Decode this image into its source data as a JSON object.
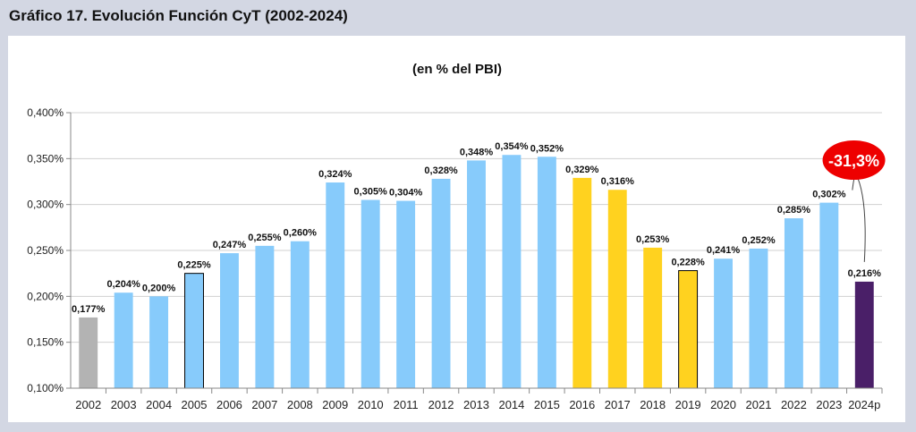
{
  "header": {
    "title": "Gráfico 17. Evolución Función CyT (2002-2024)"
  },
  "colors": {
    "gray": "#b3b3b3",
    "blue": "#87cbfb",
    "yellow": "#ffd21f",
    "purple": "#4a1f68",
    "badge": "#ee0000"
  },
  "chart_data": {
    "type": "bar",
    "title": "(en % del PBI)",
    "xlabel": "",
    "ylabel": "",
    "ylim": [
      0.1,
      0.4
    ],
    "y_ticks": [
      "0,100%",
      "0,150%",
      "0,200%",
      "0,250%",
      "0,300%",
      "0,350%",
      "0,400%"
    ],
    "grid": true,
    "categories": [
      "2002",
      "2003",
      "2004",
      "2005",
      "2006",
      "2007",
      "2008",
      "2009",
      "2010",
      "2011",
      "2012",
      "2013",
      "2014",
      "2015",
      "2016",
      "2017",
      "2018",
      "2019",
      "2020",
      "2021",
      "2022",
      "2023",
      "2024p"
    ],
    "values": [
      0.177,
      0.204,
      0.2,
      0.225,
      0.247,
      0.255,
      0.26,
      0.324,
      0.305,
      0.304,
      0.328,
      0.348,
      0.354,
      0.352,
      0.329,
      0.316,
      0.253,
      0.228,
      0.241,
      0.252,
      0.285,
      0.302,
      0.216
    ],
    "value_labels": [
      "0,177%",
      "0,204%",
      "0,200%",
      "0,225%",
      "0,247%",
      "0,255%",
      "0,260%",
      "0,324%",
      "0,305%",
      "0,304%",
      "0,328%",
      "0,348%",
      "0,354%",
      "0,352%",
      "0,329%",
      "0,316%",
      "0,253%",
      "0,228%",
      "0,241%",
      "0,252%",
      "0,285%",
      "0,302%",
      "0,216%"
    ],
    "bar_colors": [
      "gray",
      "blue",
      "blue",
      "blue",
      "blue",
      "blue",
      "blue",
      "blue",
      "blue",
      "blue",
      "blue",
      "blue",
      "blue",
      "blue",
      "yellow",
      "yellow",
      "yellow",
      "yellow",
      "blue",
      "blue",
      "blue",
      "blue",
      "purple"
    ],
    "outlined_bars": [
      "2005",
      "2019"
    ],
    "annotation": {
      "text": "-31,3%",
      "from": "2023",
      "to": "2024p"
    }
  }
}
